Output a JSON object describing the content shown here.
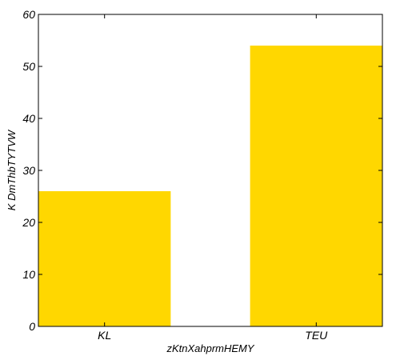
{
  "chart_data": {
    "type": "bar",
    "title": "",
    "xlabel": "zKtnXahprmHEMY",
    "ylabel": "K DmThbTYTVW",
    "categories": [
      "KL",
      "TEU"
    ],
    "values": [
      26,
      54
    ],
    "ylim": [
      0,
      60
    ],
    "yticks": [
      0,
      10,
      20,
      30,
      40,
      50,
      60
    ],
    "grid": false,
    "legend": "none",
    "bar_color": "#FFD700"
  }
}
